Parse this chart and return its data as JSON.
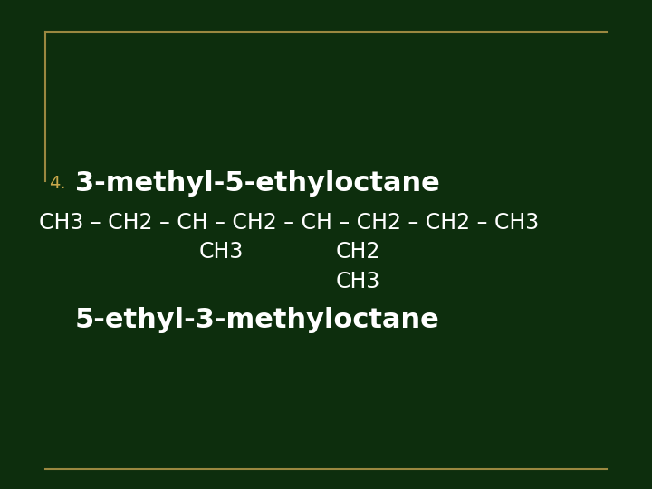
{
  "background_color": "#0d2e0d",
  "border_color": "#9a8840",
  "title_number": "4.",
  "title_number_color": "#c8a84b",
  "title_text": "3-methyl-5-ethyloctane",
  "title_color": "#ffffff",
  "title_fontsize": 22,
  "title_number_fontsize": 14,
  "chain_line": "CH3 – CH2 – CH – CH2 – CH – CH2 – CH2 – CH3",
  "chain_color": "#ffffff",
  "chain_fontsize": 17,
  "sub1_text": "CH3",
  "sub1_color": "#ffffff",
  "sub1_fontsize": 17,
  "sub2_text": "CH2",
  "sub2_color": "#ffffff",
  "sub2_fontsize": 17,
  "sub3_text": "CH3",
  "sub3_color": "#ffffff",
  "sub3_fontsize": 17,
  "answer_text": "5-ethyl-3-methyloctane",
  "answer_color": "#ffffff",
  "answer_fontsize": 22,
  "font_family": "DejaVu Sans"
}
